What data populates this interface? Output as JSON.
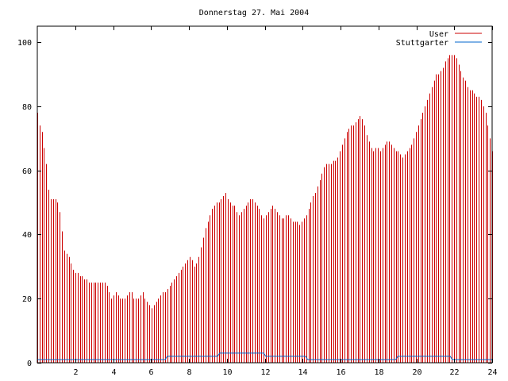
{
  "chart_data": {
    "type": "bar",
    "title": "Donnerstag 27. Mai 2004",
    "xlabel": "",
    "ylabel": "",
    "xlim": [
      0,
      24
    ],
    "ylim": [
      0,
      105
    ],
    "x_ticks": [
      "2",
      "4",
      "6",
      "8",
      "10",
      "12",
      "14",
      "16",
      "18",
      "20",
      "22",
      "24"
    ],
    "y_ticks": [
      "0",
      "20",
      "40",
      "60",
      "80",
      "100"
    ],
    "grid": false,
    "legend_position": "top-right",
    "series": [
      {
        "name": "User",
        "color": "#cc0000",
        "style": "impulses",
        "values": [
          78,
          74,
          72,
          67,
          62,
          54,
          51,
          51,
          51,
          50,
          47,
          41,
          35,
          34,
          33,
          31,
          29,
          28,
          28,
          27,
          27,
          26,
          26,
          25,
          25,
          25,
          25,
          25,
          25,
          25,
          25,
          24,
          22,
          20,
          21,
          22,
          21,
          20,
          20,
          20,
          21,
          22,
          22,
          20,
          20,
          20,
          21,
          22,
          20,
          19,
          18,
          17,
          18,
          19,
          20,
          21,
          22,
          22,
          23,
          24,
          25,
          26,
          27,
          28,
          29,
          30,
          31,
          32,
          33,
          32,
          30,
          31,
          33,
          36,
          39,
          42,
          44,
          46,
          48,
          49,
          50,
          50,
          51,
          52,
          53,
          51,
          50,
          49,
          49,
          47,
          46,
          47,
          48,
          49,
          50,
          51,
          51,
          50,
          49,
          48,
          46,
          45,
          46,
          47,
          48,
          49,
          48,
          47,
          46,
          45,
          45,
          46,
          46,
          45,
          44,
          44,
          44,
          43,
          44,
          45,
          46,
          48,
          50,
          52,
          53,
          55,
          57,
          59,
          61,
          62,
          62,
          62,
          63,
          63,
          64,
          66,
          68,
          70,
          72,
          73,
          74,
          74,
          75,
          76,
          77,
          76,
          74,
          71,
          69,
          67,
          66,
          67,
          67,
          66,
          67,
          68,
          69,
          69,
          68,
          67,
          66,
          66,
          65,
          64,
          65,
          66,
          67,
          68,
          70,
          72,
          74,
          76,
          78,
          80,
          82,
          84,
          86,
          88,
          90,
          90,
          91,
          92,
          94,
          95,
          96,
          96,
          96,
          95,
          93,
          91,
          89,
          88,
          86,
          85,
          85,
          84,
          83,
          83,
          82,
          80,
          78,
          74,
          70,
          66
        ]
      },
      {
        "name": "Stuttgarter",
        "color": "#0066cc",
        "style": "line",
        "values": [
          1,
          1,
          1,
          1,
          1,
          1,
          1,
          1,
          1,
          1,
          1,
          1,
          1,
          1,
          1,
          1,
          1,
          1,
          1,
          1,
          1,
          1,
          1,
          1,
          1,
          1,
          1,
          1,
          1,
          1,
          1,
          1,
          1,
          1,
          1,
          1,
          1,
          1,
          1,
          1,
          1,
          1,
          1,
          1,
          1,
          1,
          1,
          1,
          1,
          1,
          1,
          1,
          1,
          1,
          1,
          1,
          1,
          1,
          1,
          1,
          1,
          1,
          2,
          2,
          2,
          2,
          2,
          2,
          2,
          2,
          2,
          2,
          2,
          2,
          2,
          2,
          2,
          2,
          2,
          2,
          2,
          2,
          2,
          2,
          2,
          2,
          2,
          3,
          3,
          3,
          3,
          3,
          3,
          3,
          3,
          3,
          3,
          3,
          3,
          3,
          3,
          3,
          3,
          3,
          3,
          3,
          3,
          3,
          3,
          2,
          2,
          2,
          2,
          2,
          2,
          2,
          2,
          2,
          2,
          2,
          2,
          2,
          2,
          2,
          2,
          2,
          2,
          2,
          2,
          1,
          1,
          1,
          1,
          1,
          1,
          1,
          1,
          1,
          1,
          1,
          1,
          1,
          1,
          1,
          1,
          1,
          1,
          1,
          1,
          1,
          1,
          1,
          1,
          1,
          1,
          1,
          1,
          1,
          1,
          1,
          1,
          1,
          1,
          1,
          1,
          1,
          1,
          1,
          1,
          1,
          1,
          1,
          2,
          2,
          2,
          2,
          2,
          2,
          2,
          2,
          2,
          2,
          2,
          2,
          2,
          2,
          2,
          2,
          2,
          2,
          2,
          2,
          2,
          2,
          2,
          2,
          2,
          2,
          1,
          1,
          1,
          1,
          1,
          1,
          1,
          1,
          1,
          1,
          1,
          1,
          1,
          1,
          1,
          1,
          1,
          1,
          1,
          1
        ]
      }
    ]
  }
}
